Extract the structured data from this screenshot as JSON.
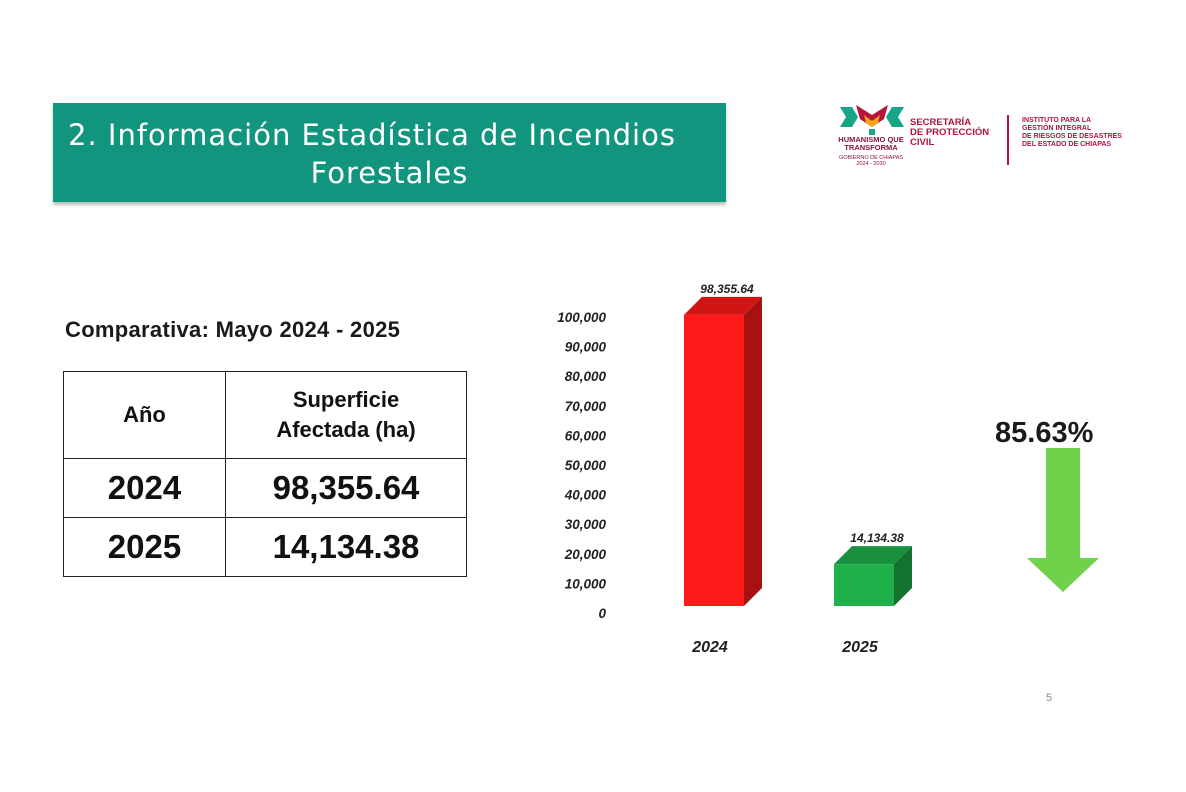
{
  "header": {
    "title_line1": "2. Información Estadística de Incendios",
    "title_line2": "Forestales",
    "banner_color": "#12957f"
  },
  "logos": {
    "gov_line1": "HUMANISMO QUE",
    "gov_line2": "TRANSFORMA",
    "gov_sub1": "GOBIERNO DE CHIAPAS",
    "gov_sub2": "2024 - 2030",
    "sec_line1": "SECRETARÍA",
    "sec_line2": "DE PROTECCIÓN",
    "sec_line3": "CIVIL",
    "inst_line1": "INSTITUTO PARA LA",
    "inst_line2": "GESTIÓN INTEGRAL",
    "inst_line3": "DE RIESGOS DE DESASTRES",
    "inst_line4": "DEL ESTADO DE CHIAPAS",
    "brand_color": "#b5123c"
  },
  "comparison": {
    "title": "Comparativa: Mayo 2024 - 2025",
    "headers": [
      "Año",
      "Superficie",
      "Afectada (ha)"
    ],
    "rows": [
      {
        "year": "2024",
        "value": "98,355.64"
      },
      {
        "year": "2025",
        "value": "14,134.38"
      }
    ]
  },
  "reduction": {
    "percent": "85.63%",
    "arrow_color": "#6fd24a",
    "icon": "down-arrow-icon"
  },
  "chart_data": {
    "type": "bar",
    "categories": [
      "2024",
      "2025"
    ],
    "values": [
      98355.64,
      14134.38
    ],
    "data_labels": [
      "98,355.64",
      "14,134.38"
    ],
    "colors": [
      "#ff1a1a",
      "#1fb04a"
    ],
    "ylim": [
      0,
      100000
    ],
    "yticks": [
      0,
      10000,
      20000,
      30000,
      40000,
      50000,
      60000,
      70000,
      80000,
      90000,
      100000
    ],
    "ytick_labels": [
      "0",
      "10,000",
      "20,000",
      "30,000",
      "40,000",
      "50,000",
      "60,000",
      "70,000",
      "80,000",
      "90,000",
      "100,000"
    ],
    "grid": false,
    "legend": "none"
  },
  "footer": {
    "page_number": "5"
  }
}
